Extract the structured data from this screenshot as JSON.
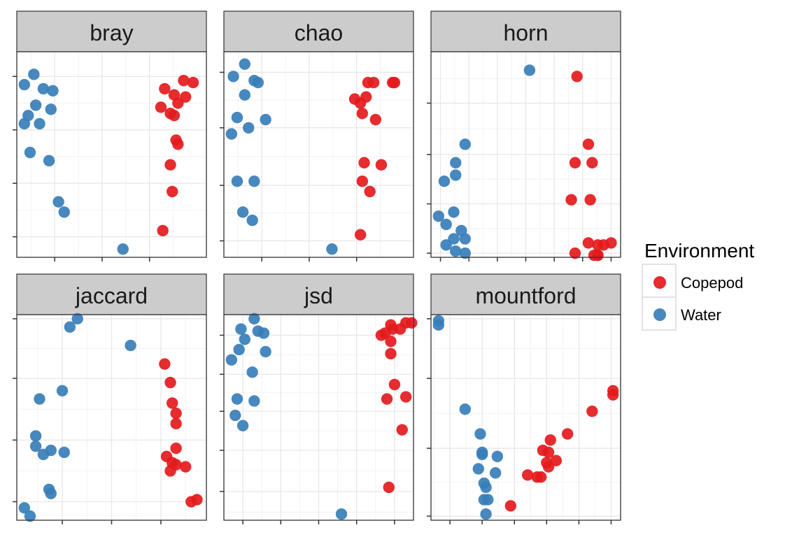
{
  "colors": {
    "copepod": "#E41A1C",
    "water": "#377EB8"
  },
  "legend": {
    "title": "Environment",
    "items": [
      {
        "label": "Copepod",
        "color": "#E41A1C"
      },
      {
        "label": "Water",
        "color": "#377EB8"
      }
    ]
  },
  "chart_data": [
    {
      "type": "scatter",
      "title": "bray",
      "grid": true,
      "xlim": [
        0,
        10
      ],
      "ylim": [
        0,
        10
      ],
      "x_ticks": [
        2,
        4.5,
        7
      ],
      "y_ticks": [
        1,
        3.6,
        6.2,
        8.8
      ],
      "series": [
        {
          "name": "Water",
          "points": [
            [
              0.4,
              8.4
            ],
            [
              0.9,
              8.9
            ],
            [
              1.4,
              8.2
            ],
            [
              1.9,
              8.1
            ],
            [
              1.0,
              7.4
            ],
            [
              0.6,
              6.9
            ],
            [
              1.8,
              7.2
            ],
            [
              0.4,
              6.5
            ],
            [
              1.2,
              6.5
            ],
            [
              0.7,
              5.1
            ],
            [
              1.7,
              4.7
            ],
            [
              2.2,
              2.7
            ],
            [
              2.5,
              2.2
            ],
            [
              5.6,
              0.4
            ]
          ]
        },
        {
          "name": "Copepod",
          "points": [
            [
              8.8,
              8.6
            ],
            [
              9.3,
              8.5
            ],
            [
              7.8,
              8.2
            ],
            [
              8.3,
              7.9
            ],
            [
              8.9,
              7.8
            ],
            [
              8.5,
              7.5
            ],
            [
              7.6,
              7.3
            ],
            [
              8.1,
              7.0
            ],
            [
              8.3,
              6.9
            ],
            [
              8.4,
              5.7
            ],
            [
              8.5,
              5.5
            ],
            [
              8.1,
              4.5
            ],
            [
              8.2,
              3.2
            ],
            [
              7.7,
              1.3
            ]
          ]
        }
      ]
    },
    {
      "type": "scatter",
      "title": "chao",
      "grid": true,
      "xlim": [
        0,
        10
      ],
      "ylim": [
        0,
        10
      ],
      "x_ticks": [
        2,
        4.5,
        7
      ],
      "y_ticks": [
        0.8,
        3.5,
        6.3,
        9.0
      ],
      "series": [
        {
          "name": "Water",
          "points": [
            [
              1.1,
              9.4
            ],
            [
              0.5,
              8.8
            ],
            [
              1.6,
              8.6
            ],
            [
              1.8,
              8.5
            ],
            [
              1.1,
              7.9
            ],
            [
              0.7,
              6.8
            ],
            [
              2.2,
              6.7
            ],
            [
              1.3,
              6.3
            ],
            [
              0.4,
              6.0
            ],
            [
              0.7,
              3.7
            ],
            [
              1.6,
              3.7
            ],
            [
              1.0,
              2.2
            ],
            [
              1.5,
              1.8
            ],
            [
              5.7,
              0.4
            ]
          ]
        },
        {
          "name": "Copepod",
          "points": [
            [
              7.6,
              8.5
            ],
            [
              7.9,
              8.5
            ],
            [
              8.9,
              8.5
            ],
            [
              9.0,
              8.5
            ],
            [
              7.5,
              7.8
            ],
            [
              6.9,
              7.7
            ],
            [
              7.2,
              7.5
            ],
            [
              7.3,
              7.0
            ],
            [
              8.0,
              6.7
            ],
            [
              7.4,
              4.6
            ],
            [
              8.3,
              4.5
            ],
            [
              7.3,
              3.7
            ],
            [
              7.7,
              3.2
            ],
            [
              7.2,
              1.1
            ]
          ]
        }
      ]
    },
    {
      "type": "scatter",
      "title": "horn",
      "grid": true,
      "xlim": [
        0,
        10
      ],
      "ylim": [
        0,
        10
      ],
      "x_ticks": [
        0.5,
        2,
        3.5,
        5,
        6.5,
        8,
        9.5
      ],
      "y_ticks": [
        0.2,
        2.6,
        5,
        7.5
      ],
      "series": [
        {
          "name": "Water",
          "points": [
            [
              5.2,
              9.1
            ],
            [
              1.8,
              5.5
            ],
            [
              1.3,
              4.6
            ],
            [
              1.3,
              4.0
            ],
            [
              0.7,
              3.7
            ],
            [
              1.2,
              2.2
            ],
            [
              0.4,
              2.0
            ],
            [
              0.8,
              1.6
            ],
            [
              1.6,
              1.3
            ],
            [
              1.2,
              0.9
            ],
            [
              1.8,
              0.9
            ],
            [
              0.8,
              0.6
            ],
            [
              1.3,
              0.3
            ],
            [
              1.8,
              0.2
            ]
          ]
        },
        {
          "name": "Copepod",
          "points": [
            [
              7.7,
              8.8
            ],
            [
              8.3,
              5.5
            ],
            [
              7.6,
              4.6
            ],
            [
              8.5,
              4.6
            ],
            [
              7.4,
              2.8
            ],
            [
              8.4,
              2.8
            ],
            [
              8.3,
              0.7
            ],
            [
              8.8,
              0.6
            ],
            [
              9.1,
              0.6
            ],
            [
              9.5,
              0.7
            ],
            [
              7.6,
              0.2
            ],
            [
              8.6,
              0.1
            ],
            [
              8.8,
              0.1
            ],
            [
              8.8,
              0.1
            ]
          ]
        }
      ]
    },
    {
      "type": "scatter",
      "title": "jaccard",
      "grid": true,
      "xlim": [
        0,
        10
      ],
      "ylim": [
        0,
        10
      ],
      "x_ticks": [
        2.4,
        5.0,
        7.6
      ],
      "y_ticks": [
        0.9,
        3.9,
        6.9,
        9.8
      ],
      "series": [
        {
          "name": "Water",
          "points": [
            [
              3.2,
              9.8
            ],
            [
              2.8,
              9.4
            ],
            [
              6.0,
              8.5
            ],
            [
              2.4,
              6.3
            ],
            [
              1.2,
              5.9
            ],
            [
              1.0,
              4.1
            ],
            [
              1.0,
              3.6
            ],
            [
              1.4,
              3.2
            ],
            [
              1.8,
              3.4
            ],
            [
              2.5,
              3.3
            ],
            [
              1.7,
              1.5
            ],
            [
              1.8,
              1.3
            ],
            [
              0.4,
              0.6
            ],
            [
              0.7,
              0.2
            ]
          ]
        },
        {
          "name": "Copepod",
          "points": [
            [
              7.8,
              7.6
            ],
            [
              8.1,
              6.7
            ],
            [
              8.2,
              5.7
            ],
            [
              8.4,
              5.2
            ],
            [
              8.4,
              4.7
            ],
            [
              8.4,
              3.5
            ],
            [
              7.9,
              3.1
            ],
            [
              8.2,
              2.8
            ],
            [
              8.4,
              2.7
            ],
            [
              8.9,
              2.6
            ],
            [
              8.1,
              2.4
            ],
            [
              9.5,
              1.0
            ],
            [
              9.2,
              0.9
            ]
          ]
        }
      ]
    },
    {
      "type": "scatter",
      "title": "jsd",
      "grid": true,
      "xlim": [
        0,
        10
      ],
      "ylim": [
        0,
        10
      ],
      "x_ticks": [
        1.0,
        3.0,
        5.0,
        7.0,
        9.0
      ],
      "y_ticks": [
        1.4,
        3.4,
        5.3,
        7.1,
        9.0
      ],
      "series": [
        {
          "name": "Water",
          "points": [
            [
              1.6,
              9.8
            ],
            [
              0.9,
              9.3
            ],
            [
              1.8,
              9.2
            ],
            [
              2.1,
              9.1
            ],
            [
              1.1,
              8.8
            ],
            [
              0.8,
              8.3
            ],
            [
              2.2,
              8.2
            ],
            [
              0.4,
              7.8
            ],
            [
              1.5,
              7.2
            ],
            [
              0.7,
              5.9
            ],
            [
              1.6,
              5.8
            ],
            [
              0.6,
              5.1
            ],
            [
              1.0,
              4.6
            ],
            [
              6.2,
              0.3
            ]
          ]
        },
        {
          "name": "Copepod",
          "points": [
            [
              9.6,
              9.6
            ],
            [
              9.9,
              9.6
            ],
            [
              8.8,
              9.5
            ],
            [
              8.9,
              9.3
            ],
            [
              9.3,
              9.3
            ],
            [
              8.5,
              9.1
            ],
            [
              8.3,
              9.0
            ],
            [
              8.8,
              8.7
            ],
            [
              8.8,
              8.1
            ],
            [
              9.0,
              6.6
            ],
            [
              9.6,
              6.0
            ],
            [
              8.6,
              5.9
            ],
            [
              9.4,
              4.4
            ],
            [
              8.7,
              1.6
            ]
          ]
        }
      ]
    },
    {
      "type": "scatter",
      "title": "mountford",
      "grid": true,
      "xlim": [
        0,
        10
      ],
      "ylim": [
        0,
        10
      ],
      "x_ticks": [
        1.0,
        2.7,
        4.4,
        6.1,
        7.8,
        9.5
      ],
      "y_ticks": [
        0.2,
        3.5,
        6.9,
        9.8
      ],
      "series": [
        {
          "name": "Water",
          "points": [
            [
              0.4,
              9.7
            ],
            [
              0.4,
              9.5
            ],
            [
              1.8,
              5.4
            ],
            [
              2.6,
              4.2
            ],
            [
              2.7,
              3.3
            ],
            [
              2.7,
              3.2
            ],
            [
              3.5,
              3.1
            ],
            [
              2.5,
              2.5
            ],
            [
              3.4,
              2.3
            ],
            [
              2.8,
              1.8
            ],
            [
              2.9,
              1.6
            ],
            [
              2.8,
              1.0
            ],
            [
              3.0,
              1.0
            ],
            [
              2.9,
              0.3
            ]
          ]
        },
        {
          "name": "Copepod",
          "points": [
            [
              9.6,
              6.3
            ],
            [
              9.6,
              6.1
            ],
            [
              8.5,
              5.3
            ],
            [
              7.2,
              4.2
            ],
            [
              6.3,
              3.9
            ],
            [
              5.9,
              3.4
            ],
            [
              6.2,
              3.3
            ],
            [
              6.6,
              2.9
            ],
            [
              6.1,
              2.8
            ],
            [
              6.2,
              2.6
            ],
            [
              5.1,
              2.2
            ],
            [
              5.6,
              2.1
            ],
            [
              5.8,
              2.1
            ],
            [
              4.2,
              0.7
            ]
          ]
        }
      ]
    }
  ]
}
